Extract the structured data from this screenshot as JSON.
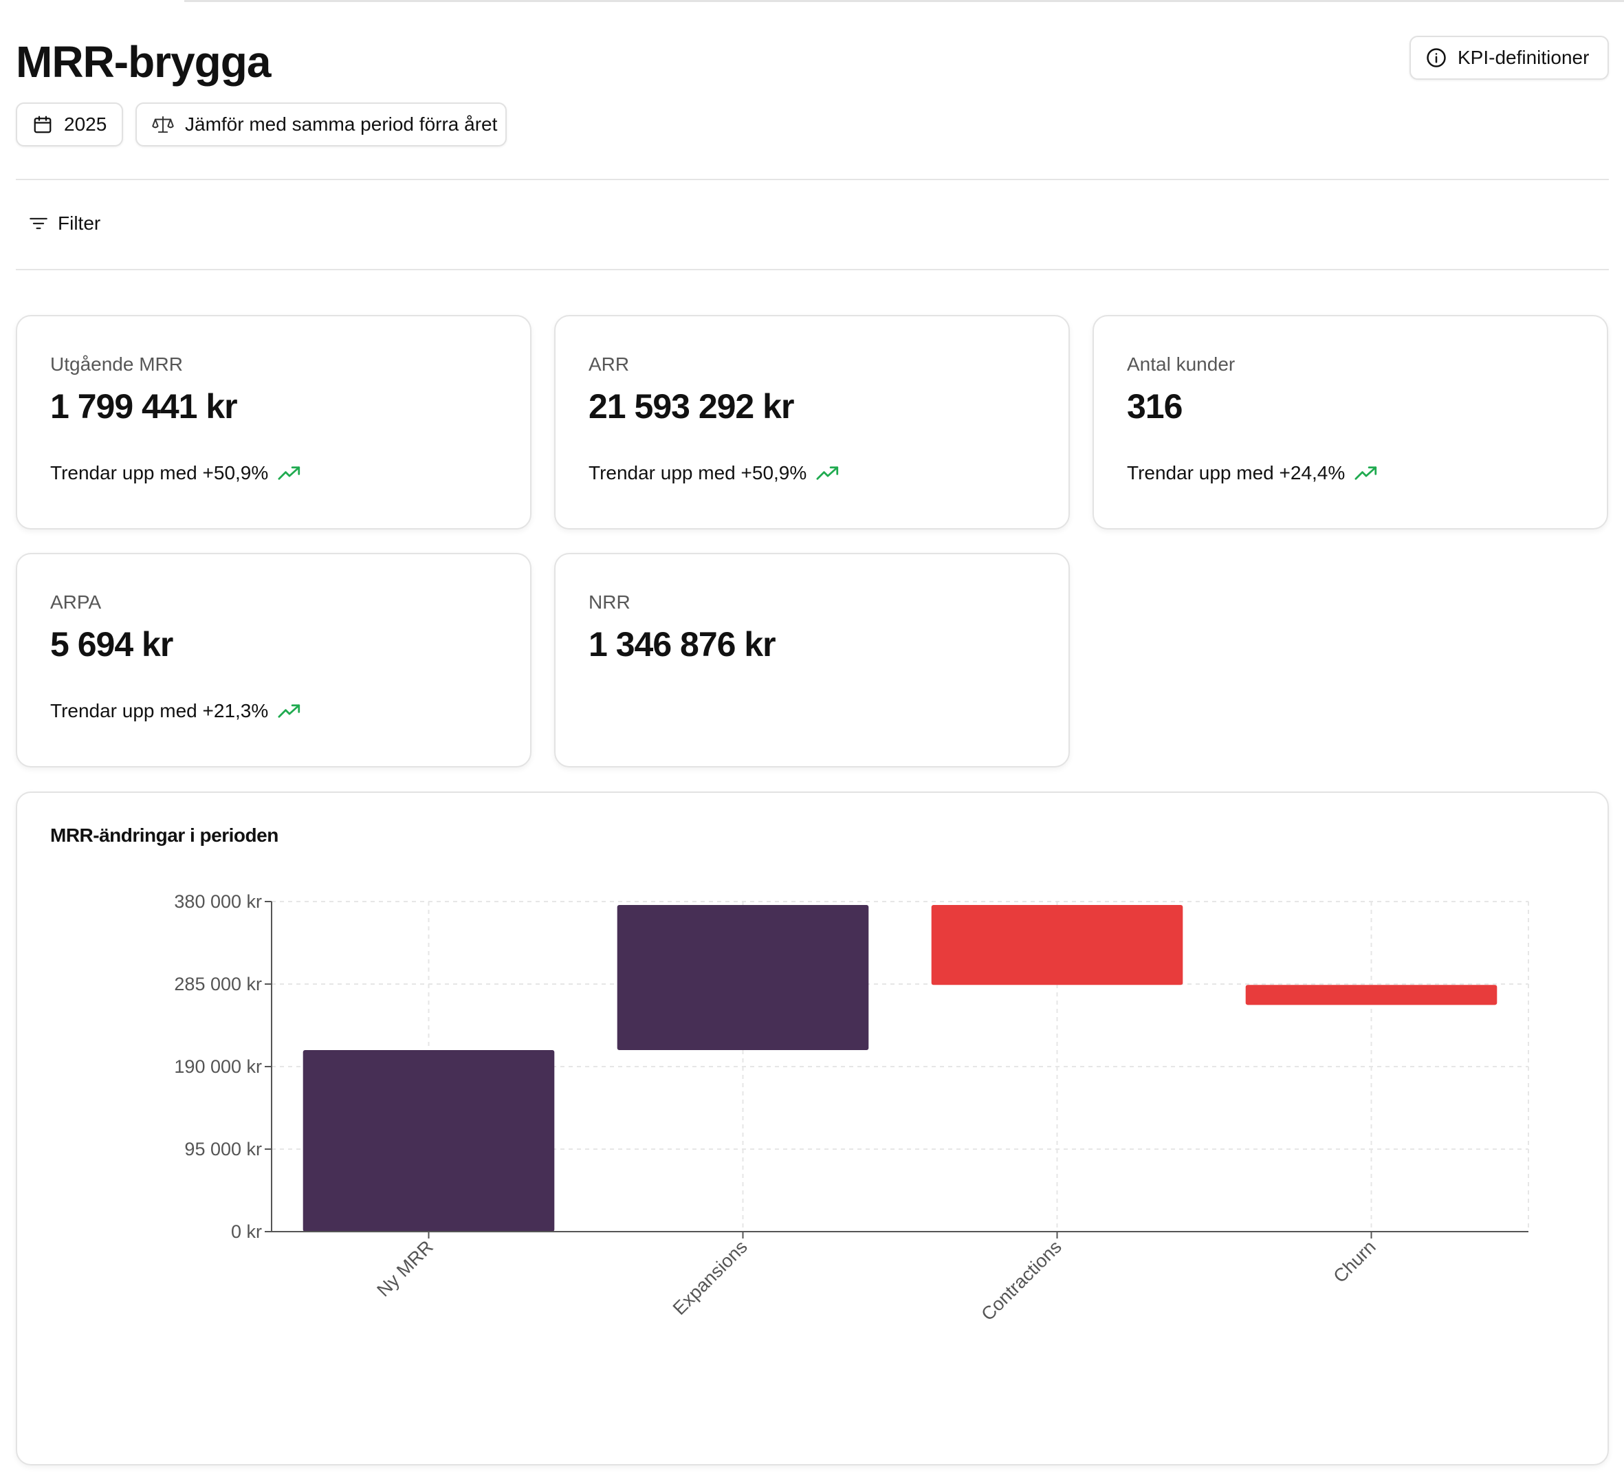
{
  "page": {
    "title": "MRR-brygga"
  },
  "header": {
    "kpi_definitions_label": "KPI-definitioner"
  },
  "toolbar": {
    "year_label": "2025",
    "compare_label": "Jämför med samma period förra året",
    "filter_label": "Filter"
  },
  "kpis": [
    {
      "label": "Utgående MRR",
      "value": "1 799 441 kr",
      "trend": "Trendar upp med +50,9%"
    },
    {
      "label": "ARR",
      "value": "21 593 292 kr",
      "trend": "Trendar upp med +50,9%"
    },
    {
      "label": "Antal kunder",
      "value": "316",
      "trend": "Trendar upp med +24,4%"
    },
    {
      "label": "ARPA",
      "value": "5 694 kr",
      "trend": "Trendar upp med +21,3%"
    },
    {
      "label": "NRR",
      "value": "1 346 876 kr",
      "trend": ""
    }
  ],
  "colors": {
    "positive": "#472f55",
    "negative": "#e83c3c",
    "trend_up": "#1faa4f",
    "grid": "#e6e6e6",
    "axis": "#555555"
  },
  "chart_card": {
    "title": "MRR-ändringar i perioden"
  },
  "chart_data": {
    "type": "bar",
    "subtype": "waterfall",
    "title": "MRR-ändringar i perioden",
    "categories": [
      "Ny MRR",
      "Expansions",
      "Contractions",
      "Churn"
    ],
    "bars": [
      {
        "category": "Ny MRR",
        "start": 0,
        "end": 209000,
        "kind": "positive"
      },
      {
        "category": "Expansions",
        "start": 209000,
        "end": 376000,
        "kind": "positive"
      },
      {
        "category": "Contractions",
        "start": 376000,
        "end": 284000,
        "kind": "negative"
      },
      {
        "category": "Churn",
        "start": 284000,
        "end": 261000,
        "kind": "negative"
      }
    ],
    "ylim": [
      0,
      380000
    ],
    "yticks": [
      0,
      95000,
      190000,
      285000,
      380000
    ],
    "ytick_labels": [
      "0 kr",
      "95 000 kr",
      "190 000 kr",
      "285 000 kr",
      "380 000 kr"
    ],
    "grid": true,
    "legend": "none"
  }
}
